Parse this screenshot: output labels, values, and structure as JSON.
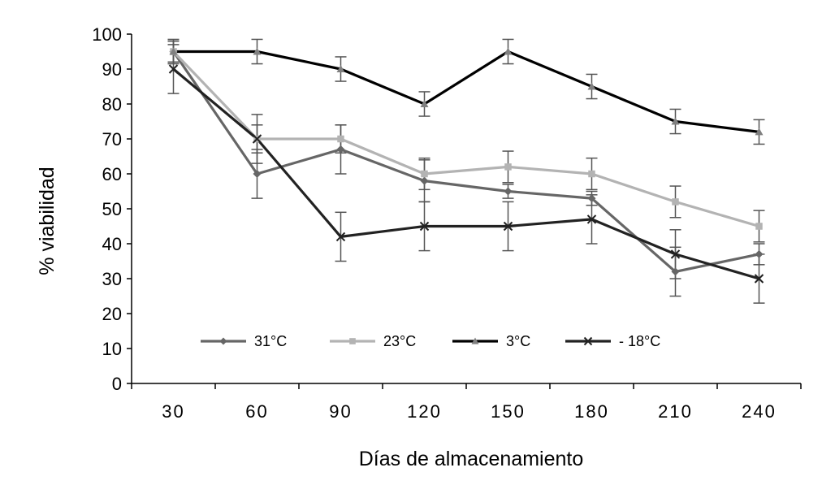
{
  "chart_data": {
    "type": "line",
    "title": "",
    "xlabel": "Días de almacenamiento",
    "ylabel": "% viabilidad",
    "categories": [
      "30",
      "60",
      "90",
      "120",
      "150",
      "180",
      "210",
      "240"
    ],
    "ylim": [
      0,
      100
    ],
    "yticks": [
      "0",
      "10",
      "20",
      "30",
      "40",
      "50",
      "60",
      "70",
      "80",
      "90",
      "100"
    ],
    "grid": false,
    "legend_position": "bottom-inside",
    "series": [
      {
        "name": "31°C",
        "color": "#666666",
        "marker": "diamond",
        "values": [
          95,
          60,
          67,
          58,
          55,
          53,
          32,
          37
        ],
        "error": [
          3,
          7,
          7,
          6,
          2,
          2,
          7,
          3
        ]
      },
      {
        "name": "23°C",
        "color": "#b3b3b3",
        "marker": "square",
        "values": [
          95,
          70,
          70,
          60,
          62,
          60,
          52,
          45
        ],
        "error": [
          3,
          4,
          4,
          4.5,
          4.5,
          4.5,
          4.5,
          4.5
        ]
      },
      {
        "name": "3°C",
        "color": "#000000",
        "marker": "triangle",
        "values": [
          95,
          95,
          90,
          80,
          95,
          85,
          75,
          72
        ],
        "error": [
          3.5,
          3.5,
          3.5,
          3.5,
          3.5,
          3.5,
          3.5,
          3.5
        ]
      },
      {
        "name": "- 18°C",
        "color": "#222222",
        "marker": "x",
        "values": [
          90,
          70,
          42,
          45,
          45,
          47,
          37,
          30
        ],
        "error": [
          7,
          7,
          7,
          7,
          7,
          7,
          7,
          7
        ]
      }
    ]
  }
}
